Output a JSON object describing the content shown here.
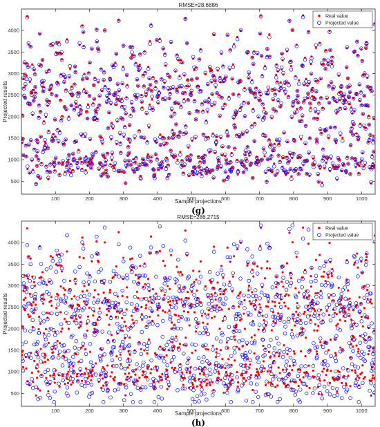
{
  "chart_data": [
    {
      "type": "scatter",
      "panel_label": "(g)",
      "title": "RMSE=28.6886",
      "xlabel": "Sample projections",
      "ylabel": "Projected results",
      "xlim": [
        0,
        1040
      ],
      "ylim": [
        200,
        4500
      ],
      "xticks": [
        100,
        200,
        300,
        400,
        500,
        600,
        700,
        800,
        900,
        1000
      ],
      "yticks": [
        500,
        1000,
        1500,
        2000,
        2500,
        3000,
        3500,
        4000
      ],
      "grid": false,
      "legend_position": "top-right",
      "n_points": 1040,
      "value_range": [
        450,
        4350
      ],
      "rmse": 28.6886,
      "series": [
        {
          "name": "Real value",
          "marker": "filled-dot",
          "color": "#ff0000"
        },
        {
          "name": "Projected value",
          "marker": "open-circle",
          "color": "#0000ff"
        }
      ]
    },
    {
      "type": "scatter",
      "panel_label": "(h)",
      "title": "RMSE=286.2715",
      "xlabel": "Sample projections",
      "ylabel": "Projected results",
      "xlim": [
        0,
        1040
      ],
      "ylim": [
        200,
        4500
      ],
      "xticks": [
        100,
        200,
        300,
        400,
        500,
        600,
        700,
        800,
        900,
        1000
      ],
      "yticks": [
        500,
        1000,
        1500,
        2000,
        2500,
        3000,
        3500,
        4000
      ],
      "grid": false,
      "legend_position": "top-right",
      "n_points": 1040,
      "value_range": [
        450,
        4350
      ],
      "rmse": 286.2715,
      "series": [
        {
          "name": "Real value",
          "marker": "filled-dot",
          "color": "#ff0000"
        },
        {
          "name": "Projected value",
          "marker": "open-circle",
          "color": "#0000ff"
        }
      ]
    }
  ]
}
